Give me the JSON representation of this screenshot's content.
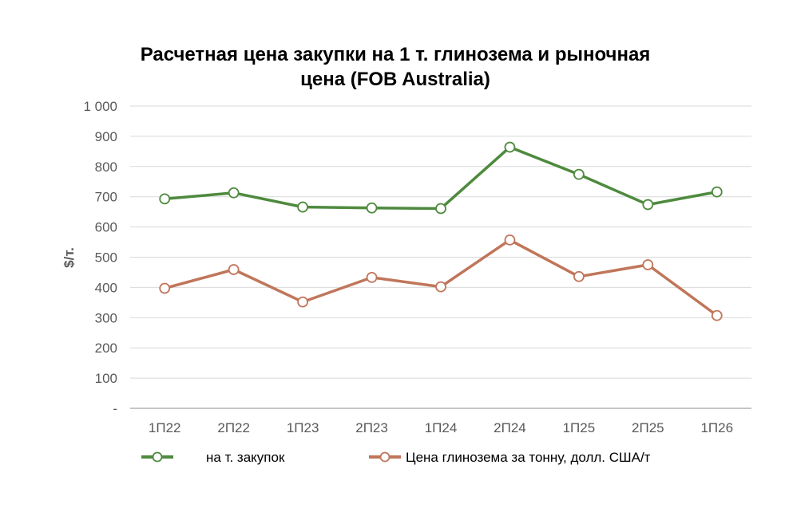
{
  "chart_data": {
    "type": "line",
    "title_line1": "Расчетная цена закупки на 1 т. глинозема и рыночная",
    "title_line2": "цена (FOB Australia)",
    "ylabel": "$/т.",
    "ylim": [
      0,
      1000
    ],
    "y_ticks": [
      "-",
      "100",
      "200",
      "300",
      "400",
      "500",
      "600",
      "700",
      "800",
      "900",
      "1 000"
    ],
    "categories": [
      "1П22",
      "2П22",
      "1П23",
      "2П23",
      "1П24",
      "2П24",
      "1П25",
      "2П25",
      "1П26"
    ],
    "grid": true,
    "legend_position": "bottom",
    "series": [
      {
        "name": "на т. закупок",
        "color": "#4e8a3e",
        "values": [
          693,
          713,
          666,
          663,
          661,
          864,
          774,
          674,
          716
        ]
      },
      {
        "name": "Цена глинозема за тонну, долл. США/т",
        "color": "#c0765a",
        "values": [
          397,
          459,
          352,
          433,
          402,
          557,
          436,
          475,
          307
        ]
      }
    ]
  }
}
